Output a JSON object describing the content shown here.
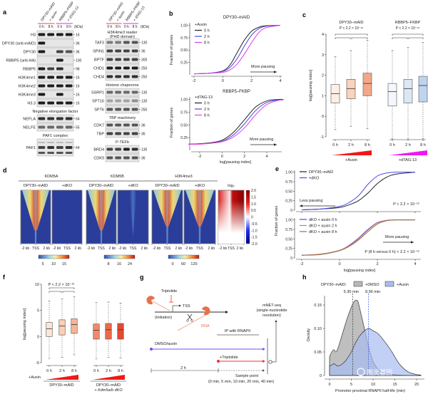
{
  "panel_labels": {
    "a": "a",
    "b": "b",
    "c": "c",
    "d": "d",
    "e": "e",
    "f": "f",
    "g": "g",
    "h": "h"
  },
  "panel_a": {
    "groups": [
      {
        "line1": "DPY30–mAID",
        "line2": "+ auxin",
        "color": "#f06a6a"
      },
      {
        "line1": "RBBP5–FKBP",
        "line2": "+ dTAG-13",
        "color": "#e05ee0"
      }
    ],
    "lanes": [
      "0 h",
      "8 h",
      "0 h",
      "8 h"
    ],
    "kda_unit": "(kDa)",
    "left": [
      {
        "type": "blot",
        "label": "H3",
        "kda": "16",
        "bands": [
          1,
          1,
          1,
          1
        ]
      },
      {
        "type": "blot",
        "label": "DPY30 (anti-mAID)",
        "kda": "36",
        "bands": [
          1,
          0,
          0,
          0
        ]
      },
      {
        "type": "blot",
        "label": "DPY30",
        "kda": "36",
        "bands": [
          1,
          0,
          0.8,
          0.7
        ]
      },
      {
        "type": "blot",
        "label": "RBBP5 (anti-HA)",
        "kda": "100",
        "bands": [
          0,
          0,
          1,
          0
        ]
      },
      {
        "type": "blot",
        "label": "RBBP5",
        "kda": "98",
        "bands": [
          1,
          0.8,
          0.9,
          0
        ]
      },
      {
        "type": "blot",
        "label": "H3K4me1",
        "kda": "16",
        "bands": [
          1,
          1,
          1,
          1
        ]
      },
      {
        "type": "blot",
        "label": "H3K4me2",
        "kda": "16",
        "bands": [
          1,
          1,
          1,
          1
        ]
      },
      {
        "type": "blot",
        "label": "H3K4me3",
        "kda": "16",
        "bands": [
          1,
          0,
          1,
          0
        ]
      },
      {
        "type": "blot",
        "label": "H3.3",
        "kda": "16",
        "bands": [
          1,
          1,
          1,
          1
        ]
      },
      {
        "type": "heading",
        "label": "Negative elongation factor"
      },
      {
        "type": "blot",
        "label": "NEFLA",
        "kda": "64",
        "bands": [
          0.9,
          0.9,
          0.9,
          0.9
        ]
      },
      {
        "type": "blot",
        "label": "NELFE",
        "kda": "55",
        "bands": [
          0.6,
          0.6,
          0.6,
          0.6
        ]
      },
      {
        "type": "heading",
        "label": "PAF1 complex"
      },
      {
        "type": "blot",
        "label": "PAF1",
        "kda": "64",
        "bands": [
          0.8,
          0.9,
          0.8,
          0.9
        ],
        "tall": true
      }
    ],
    "right": [
      {
        "type": "heading",
        "label": "H3K4me3 reader",
        "label2": "(PHD domain)"
      },
      {
        "type": "blot",
        "label": "TAF3",
        "kda": "130",
        "bands": [
          0.5,
          0.5,
          0.7,
          0.7
        ]
      },
      {
        "type": "blot",
        "label": "SPIN1",
        "kda": "36",
        "bands": [
          0.8,
          0.8,
          0.8,
          0.8
        ]
      },
      {
        "type": "blot",
        "label": "BPTF",
        "kda": "300",
        "bands": [
          0.8,
          0.8,
          0.8,
          0.8
        ]
      },
      {
        "type": "blot",
        "label": "CHD1",
        "kda": "250",
        "bands": [
          1,
          1,
          1,
          1
        ]
      },
      {
        "type": "blot",
        "label": "CHD4",
        "kda": "250",
        "bands": [
          0.9,
          0.9,
          0.9,
          0.9
        ]
      },
      {
        "type": "heading",
        "label": "Histone chaperone"
      },
      {
        "type": "blot",
        "label": "SSRP1",
        "kda": "130",
        "bands": [
          0.6,
          0.6,
          0.6,
          0.6
        ]
      },
      {
        "type": "blot",
        "label": "SPT16",
        "kda": "130",
        "bands": [
          0.3,
          0.3,
          0.3,
          0.4
        ]
      },
      {
        "type": "blot",
        "label": "SPT6",
        "kda": "250",
        "bands": [
          0.7,
          0.7,
          0.7,
          0.7
        ]
      },
      {
        "type": "heading",
        "label": "TBP machinery"
      },
      {
        "type": "blot",
        "label": "CDK7",
        "kda": "36",
        "bands": [
          0.7,
          0.7,
          0.7,
          0.7
        ]
      },
      {
        "type": "blot",
        "label": "TBP",
        "kda": "36",
        "bands": [
          0.8,
          0.8,
          0.8,
          0.8
        ]
      },
      {
        "type": "heading",
        "label": "P-TEFb"
      },
      {
        "type": "blot",
        "label": "BRD4",
        "kda": "130",
        "bands": [
          0.8,
          0.8,
          1,
          0.9
        ]
      },
      {
        "type": "blot",
        "label": "CDK9",
        "kda": "36",
        "bands": [
          0.7,
          0.7,
          0.7,
          0.7
        ]
      }
    ]
  },
  "panel_d": {
    "groups": [
      {
        "title": "KDM5A",
        "cols": [
          "DPY30–mAID",
          "+dKO"
        ],
        "colorbar_ticks": [
          "5",
          "10",
          "15"
        ]
      },
      {
        "title": "KDM5B",
        "cols": [
          "DPY30–mAID",
          "+dKO"
        ],
        "colorbar_ticks": [
          "8",
          "16",
          "24"
        ]
      },
      {
        "title": "H3K4me3",
        "cols": [
          "DPY30–mAID",
          "+dKO"
        ],
        "colorbar_ticks": [
          "0",
          "60",
          "120"
        ]
      }
    ],
    "log2_title": "log₂",
    "log2_ticks": [
      "2.0",
      "1.5",
      "1.0",
      "0.5",
      "0",
      "-0.5",
      "-1.0",
      "-1.5",
      "-2.0"
    ],
    "x_ticks": [
      "-2 kb",
      "TSS",
      "2 kb"
    ]
  },
  "panel_g": {
    "triptolide": "Triptolide",
    "tss": "TSS",
    "initiation": "(Initiation)",
    "rna": "RNA",
    "mnet_line1": "mNET-seq",
    "mnet_line2": "(single-nucleotide",
    "mnet_line3": "resolution)",
    "ip": "IP with RNAPII",
    "dmso_auxin": "DMSO/auxin",
    "plus_triptolide": "+Triptolide",
    "two_h": "2 h",
    "sample_point": "Sample point",
    "sample_times": "(0 min, 5 min, 10 min, 20 min, 40 min)",
    "colors": {
      "polII": "#e8704a",
      "purple": "#7a4cf0",
      "red": "#f03030"
    }
  },
  "watermark": "图灵基因",
  "chart_data": [
    {
      "id": "b_top",
      "type": "line",
      "title": "DPY30–mAID",
      "legend_title": "+Auxin",
      "xlabel": "",
      "ylabel": "Fraction of genes",
      "xlim": [
        -2.2,
        4.1
      ],
      "ylim": [
        0,
        1.05
      ],
      "x_ticks": [
        "-2",
        "0",
        "2",
        "4"
      ],
      "y_ticks": [
        "0.25",
        "0.50",
        "0.75",
        "1.00"
      ],
      "annotation": "More pausing",
      "legend": "top-left",
      "x": [
        -2,
        -1,
        0,
        0.5,
        1,
        1.5,
        2,
        2.5,
        3,
        4
      ],
      "series": [
        {
          "name": "0 h",
          "color": "#222222",
          "values": [
            0.02,
            0.03,
            0.08,
            0.2,
            0.45,
            0.7,
            0.88,
            0.96,
            0.99,
            1.0
          ]
        },
        {
          "name": "2 h",
          "color": "#4a4ae8",
          "values": [
            0.02,
            0.03,
            0.07,
            0.15,
            0.33,
            0.58,
            0.8,
            0.93,
            0.98,
            1.0
          ]
        },
        {
          "name": "8 h",
          "color": "#e040e0",
          "values": [
            0.02,
            0.03,
            0.05,
            0.1,
            0.22,
            0.42,
            0.65,
            0.85,
            0.95,
            1.0
          ]
        }
      ]
    },
    {
      "id": "b_bottom",
      "type": "line",
      "title": "RBBP5–FKBP",
      "legend_title": "+dTAG-13",
      "xlabel": "log[pausing index]",
      "ylabel": "Fraction of genes",
      "xlim": [
        -2.76,
        5.34
      ],
      "ylim": [
        0,
        1.05
      ],
      "x_ticks": [
        "-2",
        "0",
        "2",
        "4"
      ],
      "y_ticks": [
        "0.25",
        "0.50",
        "0.75",
        "1.00"
      ],
      "annotation": "More pausing",
      "legend": "top-left",
      "x": [
        -3,
        -2,
        -1,
        0,
        1,
        2,
        3,
        4,
        5,
        5.5
      ],
      "series": [
        {
          "name": "0 h",
          "color": "#222222",
          "values": [
            0.12,
            0.13,
            0.15,
            0.2,
            0.35,
            0.6,
            0.85,
            0.97,
            1.0,
            1.0
          ]
        },
        {
          "name": "2 h",
          "color": "#4a4ae8",
          "values": [
            0.12,
            0.13,
            0.14,
            0.18,
            0.3,
            0.52,
            0.78,
            0.94,
            0.99,
            1.0
          ]
        },
        {
          "name": "8 h",
          "color": "#e040e0",
          "values": [
            0.12,
            0.12,
            0.14,
            0.17,
            0.26,
            0.44,
            0.7,
            0.9,
            0.98,
            0.99
          ]
        }
      ]
    },
    {
      "id": "c",
      "type": "box",
      "ylabel": "log[pausing index]",
      "ylim": [
        -1,
        4
      ],
      "y_ticks": [
        "-1",
        "0",
        "1",
        "2",
        "3",
        "4"
      ],
      "groups": [
        {
          "title": "DPY30–mAID",
          "pvalue": "P < 2.2 × 10⁻¹⁶",
          "treatment": "+Auxin",
          "wedge_color": "#f01818",
          "boxes": [
            {
              "label": "0 h",
              "q1": 0.65,
              "median": 1.1,
              "q3": 1.55,
              "lo": -0.65,
              "hi": 2.9,
              "color": "#fdeee6"
            },
            {
              "label": "2 h",
              "q1": 0.85,
              "median": 1.35,
              "q3": 1.8,
              "lo": -0.5,
              "hi": 3.2,
              "color": "#fad2bd"
            },
            {
              "label": "8 h",
              "q1": 1.0,
              "median": 1.6,
              "q3": 2.1,
              "lo": -0.6,
              "hi": 3.7,
              "color": "#f2a888"
            }
          ]
        },
        {
          "title": "RBBP5–FKBP",
          "pvalue": "P < 2.2 × 10⁻¹⁶",
          "treatment": "+dTAG-13",
          "wedge_color": "#f018f0",
          "boxes": [
            {
              "label": "0 h",
              "q1": 0.5,
              "median": 1.2,
              "q3": 1.6,
              "lo": -1.1,
              "hi": 3.2,
              "color": "#f3f7fc"
            },
            {
              "label": "2 h",
              "q1": 0.65,
              "median": 1.35,
              "q3": 1.8,
              "lo": -1.1,
              "hi": 3.35,
              "color": "#dbe7f5"
            },
            {
              "label": "8 h",
              "q1": 0.7,
              "median": 1.5,
              "q3": 1.95,
              "lo": -1.1,
              "hi": 3.6,
              "color": "#bed3ee"
            }
          ]
        }
      ]
    },
    {
      "id": "e_top",
      "type": "line",
      "ylabel": "Fraction of genes",
      "xlim": [
        -2.3,
        4.3
      ],
      "ylim": [
        0,
        1.05
      ],
      "x_ticks": [
        "-2",
        "0",
        "2",
        "4"
      ],
      "y_ticks": [
        "0",
        "0.25",
        "0.50",
        "0.75",
        "1.00"
      ],
      "annotation": "Less pausing",
      "pvalue": "P < 2.2 × 10⁻¹⁶",
      "legend": "top-left",
      "x": [
        -2,
        -1,
        0,
        0.5,
        1,
        1.5,
        2,
        2.5,
        3,
        4
      ],
      "series": [
        {
          "name": "DPY30–mAID",
          "color": "#222222",
          "values": [
            0.01,
            0.03,
            0.07,
            0.14,
            0.25,
            0.45,
            0.7,
            0.87,
            0.95,
            1.0
          ]
        },
        {
          "name": "+dKO",
          "color": "#4a4ae8",
          "values": [
            0.01,
            0.03,
            0.1,
            0.2,
            0.38,
            0.68,
            0.9,
            0.98,
            1.0,
            1.0
          ]
        }
      ]
    },
    {
      "id": "e_bottom",
      "type": "line",
      "xlabel": "log[pausing index]",
      "ylim": [
        0,
        1.05
      ],
      "xlim": [
        -2.3,
        4.3
      ],
      "x_ticks": [
        "-2",
        "0",
        "2",
        "4"
      ],
      "y_ticks": [
        "0",
        "0.25",
        "0.50",
        "0.75",
        "1.00"
      ],
      "annotation": "More pausing",
      "pvalue": "P (8 h versus 0 h) < 2.2 × 10⁻¹⁶",
      "legend": "top-left",
      "x": [
        -2,
        -1,
        0,
        0.5,
        1,
        1.5,
        2,
        2.5,
        3,
        4
      ],
      "series": [
        {
          "name": "dKO + auxin 0 h",
          "color": "#4a4ae8",
          "values": [
            0.07,
            0.1,
            0.2,
            0.33,
            0.52,
            0.75,
            0.93,
            0.99,
            1.0,
            1.0
          ]
        },
        {
          "name": "dKO + auxin 2 h",
          "color": "#e07070",
          "values": [
            0.07,
            0.1,
            0.2,
            0.32,
            0.5,
            0.73,
            0.92,
            0.99,
            1.0,
            1.0
          ]
        },
        {
          "name": "dKO + auxin 8 h",
          "color": "#8a7a40",
          "values": [
            0.07,
            0.09,
            0.19,
            0.3,
            0.47,
            0.69,
            0.89,
            0.98,
            1.0,
            1.0
          ]
        }
      ]
    },
    {
      "id": "f",
      "type": "box",
      "ylabel": "log[pausing index]",
      "ylim": [
        -5,
        10
      ],
      "y_ticks": [
        "-5",
        "0",
        "5",
        "10"
      ],
      "pvalue": "P < 2.2 × 10⁻¹⁶",
      "treatment": "+Auxin",
      "wedge_color": "#f01818",
      "groups": [
        {
          "title": "DPY30–mAID",
          "title2": "",
          "boxes": [
            {
              "label": "0 h",
              "q1": 0,
              "median": 1.5,
              "q3": 2.7,
              "lo": -4.2,
              "hi": 6.8,
              "color": "#fde6d8"
            },
            {
              "label": "2 h",
              "q1": 0.3,
              "median": 2.0,
              "q3": 3.2,
              "lo": -4,
              "hi": 7.2,
              "color": "#fbcfb6"
            },
            {
              "label": "8 h",
              "q1": 0.6,
              "median": 2.3,
              "q3": 3.4,
              "lo": -3.5,
              "hi": 7.6,
              "color": "#f7b496"
            }
          ]
        },
        {
          "title": "DPY30–mAID",
          "title2": "+ Kdm5a/b dKO",
          "boxes": [
            {
              "label": "0 h",
              "q1": -0.5,
              "median": 1.2,
              "q3": 2.4,
              "lo": -4.3,
              "hi": 6.5,
              "color": "#f28a6a"
            },
            {
              "label": "2 h",
              "q1": -0.5,
              "median": 1.3,
              "q3": 2.5,
              "lo": -4,
              "hi": 6.6,
              "color": "#ec6a48"
            },
            {
              "label": "8 h",
              "q1": -0.5,
              "median": 1.3,
              "q3": 2.5,
              "lo": -4.1,
              "hi": 6.4,
              "color": "#e44a30"
            }
          ]
        }
      ]
    },
    {
      "id": "h",
      "type": "area",
      "xlabel": "Promoter proximal RNAPII half-life (min)",
      "ylabel": "Density",
      "xlim": [
        -0.5,
        22.5
      ],
      "ylim": [
        0,
        0.17
      ],
      "x_ticks": [
        "0",
        "5",
        "10",
        "15",
        "20"
      ],
      "y_ticks": [
        "0",
        "0.05",
        "0.10",
        "0.15"
      ],
      "legend_prefix": "DPY30–mAID:",
      "legend": "top",
      "x": [
        0,
        0.5,
        1,
        1.5,
        2,
        3,
        4,
        5,
        5.5,
        6,
        6.5,
        7,
        8,
        9,
        10,
        11,
        12,
        14,
        16,
        18,
        20,
        21
      ],
      "series": [
        {
          "name": "+DMSO",
          "color": "#b8b8b8",
          "median": 5.3,
          "median_label": "5.30 min",
          "line_color": "#333333",
          "values": [
            0.04,
            0.05,
            0.055,
            0.05,
            0.06,
            0.09,
            0.12,
            0.145,
            0.155,
            0.16,
            0.158,
            0.14,
            0.1,
            0.06,
            0.03,
            0.015,
            0.008,
            0.003,
            0.001,
            0,
            0,
            0
          ]
        },
        {
          "name": "+Auxin",
          "color": "#aabcf2",
          "median": 8.96,
          "median_label": "8.96 min",
          "line_color": "#3355dd",
          "values": [
            0.02,
            0.022,
            0.025,
            0.022,
            0.02,
            0.025,
            0.035,
            0.05,
            0.06,
            0.07,
            0.078,
            0.085,
            0.095,
            0.1,
            0.095,
            0.09,
            0.08,
            0.055,
            0.025,
            0.008,
            0.002,
            0.001
          ]
        }
      ]
    }
  ]
}
